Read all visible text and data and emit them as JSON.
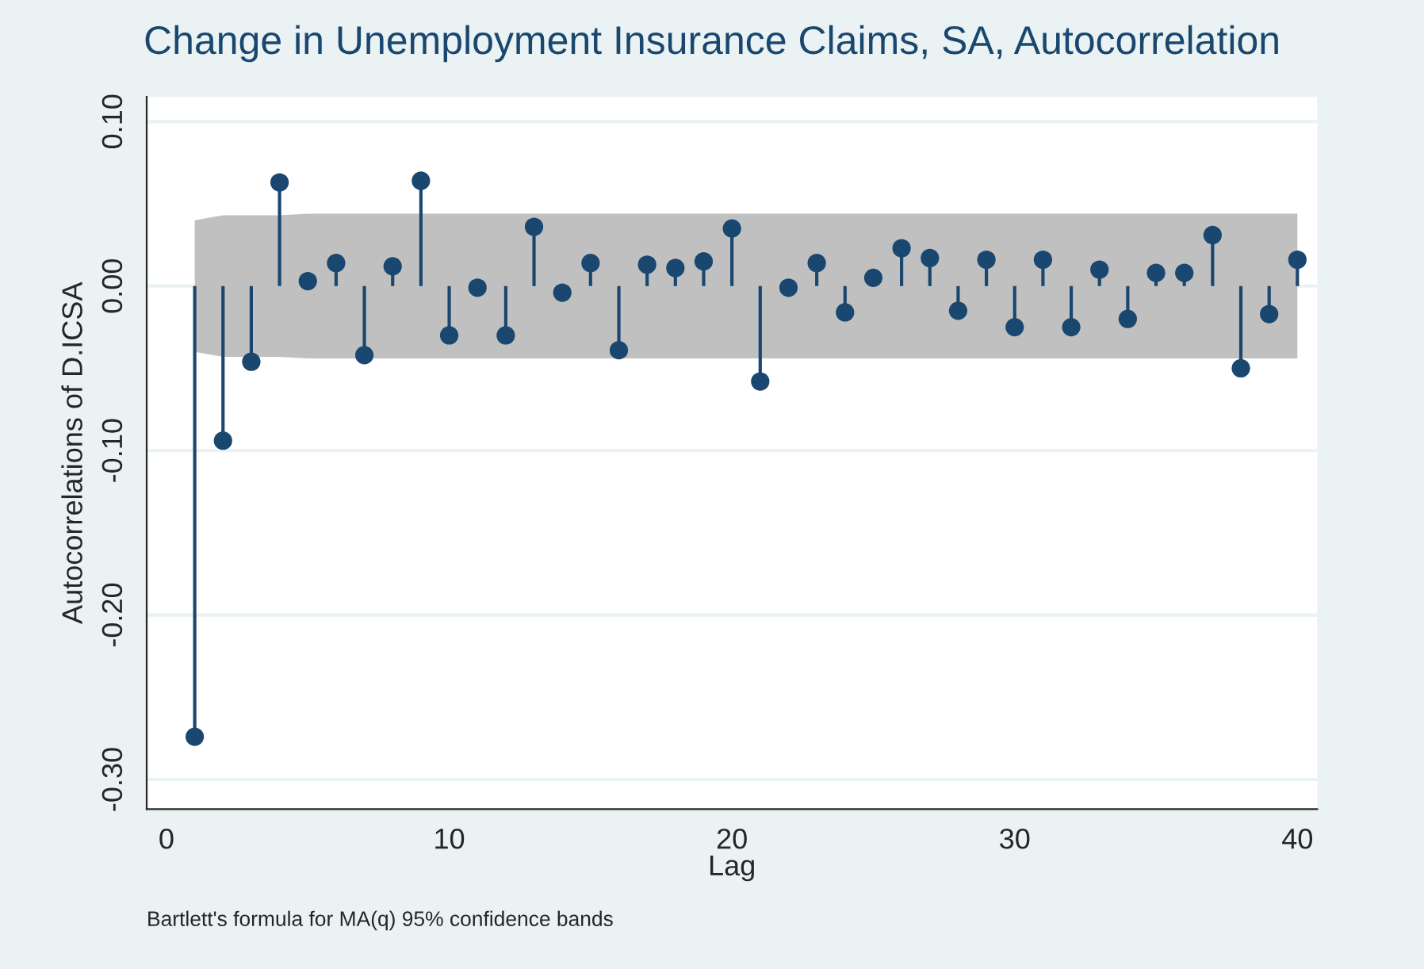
{
  "chart_data": {
    "type": "lollipop",
    "title": "Change in Unemployment Insurance Claims, SA, Autocorrelation",
    "xlabel": "Lag",
    "ylabel": "Autocorrelations of D.ICSA",
    "x": [
      1,
      2,
      3,
      4,
      5,
      6,
      7,
      8,
      9,
      10,
      11,
      12,
      13,
      14,
      15,
      16,
      17,
      18,
      19,
      20,
      21,
      22,
      23,
      24,
      25,
      26,
      27,
      28,
      29,
      30,
      31,
      32,
      33,
      34,
      35,
      36,
      37,
      38,
      39,
      40
    ],
    "series": [
      {
        "color": "#1a476f",
        "values": [
          -0.274,
          -0.094,
          -0.046,
          0.063,
          0.003,
          0.014,
          -0.042,
          0.012,
          0.064,
          -0.03,
          -0.001,
          -0.03,
          0.036,
          -0.004,
          0.014,
          -0.039,
          0.013,
          0.011,
          0.015,
          0.035,
          -0.058,
          -0.001,
          0.014,
          -0.016,
          0.005,
          0.023,
          0.017,
          -0.015,
          0.016,
          -0.025,
          0.016,
          -0.025,
          0.01,
          -0.02,
          0.008,
          0.008,
          0.031,
          -0.05,
          -0.017,
          0.016
        ],
        "lower": [
          -0.04,
          -0.043,
          -0.043,
          -0.043,
          -0.044,
          -0.044,
          -0.044,
          -0.044,
          -0.044,
          -0.044,
          -0.044,
          -0.044,
          -0.044,
          -0.044,
          -0.044,
          -0.044,
          -0.044,
          -0.044,
          -0.044,
          -0.044,
          -0.044,
          -0.044,
          -0.044,
          -0.044,
          -0.044,
          -0.044,
          -0.044,
          -0.044,
          -0.044,
          -0.044,
          -0.044,
          -0.044,
          -0.044,
          -0.044,
          -0.044,
          -0.044,
          -0.044,
          -0.044,
          -0.044,
          -0.044
        ],
        "upper": [
          0.04,
          0.043,
          0.043,
          0.043,
          0.044,
          0.044,
          0.044,
          0.044,
          0.044,
          0.044,
          0.044,
          0.044,
          0.044,
          0.044,
          0.044,
          0.044,
          0.044,
          0.044,
          0.044,
          0.044,
          0.044,
          0.044,
          0.044,
          0.044,
          0.044,
          0.044,
          0.044,
          0.044,
          0.044,
          0.044,
          0.044,
          0.044,
          0.044,
          0.044,
          0.044,
          0.044,
          0.044,
          0.044,
          0.044,
          0.044
        ]
      }
    ],
    "xlim": [
      -0.7,
      40.7
    ],
    "xticks": [
      0,
      10,
      20,
      30,
      40
    ],
    "ylim": [
      -0.318,
      0.115
    ],
    "yticks": [
      {
        "value": -0.3,
        "label": "-0.30"
      },
      {
        "value": -0.2,
        "label": "-0.20"
      },
      {
        "value": -0.1,
        "label": "-0.10"
      },
      {
        "value": 0.0,
        "label": "0.00"
      },
      {
        "value": 0.1,
        "label": "0.10"
      }
    ],
    "grid": "y",
    "marker": "circle",
    "annotations": [
      "Bartlett's formula for MA(q) 95% confidence bands"
    ]
  }
}
